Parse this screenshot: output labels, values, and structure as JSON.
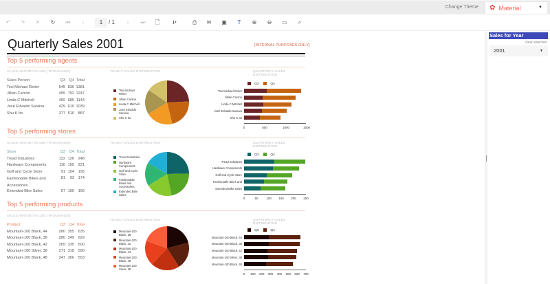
{
  "topbar": {
    "change_theme_label": "Change Theme",
    "theme_value": "Material",
    "theme_icon": "palette-icon"
  },
  "toolbar": {
    "current_page": "1",
    "total_pages": "/ 1",
    "buttons": [
      "undo",
      "redo",
      "stop",
      "refresh",
      "first-page",
      "previous-page",
      "next-page",
      "last-page",
      "page-setup",
      "export",
      "print",
      "email",
      "save",
      "parameters-filter",
      "zoom-in",
      "zoom-out",
      "fullscreen",
      "search"
    ]
  },
  "report": {
    "title": "Quarterly Sales 2001",
    "internal_note": "[INTERNAL PURPOSES ONLY]",
    "sections": [
      {
        "title": "Top 5 performing agents",
        "table_caption": "SALES AMOUNT IN USD (THOUSANDS)",
        "pie_caption": "YEARLY SALES DISTRIBUTION",
        "bar_caption": "QUARTERLY SALES DISTRIBUTION",
        "columns": [
          "Sales Person",
          "Q3",
          "Q4",
          "Total"
        ],
        "rows": [
          [
            "Tsvi Michael Reiter",
            "545",
            "836",
            "1381"
          ],
          [
            "Jillian  Carson",
            "455",
            "792",
            "1247"
          ],
          [
            "Linda C Mitchell",
            "459",
            "685",
            "1144"
          ],
          [
            "José Edvaldo Saraiva",
            "429",
            "610",
            "1039"
          ],
          [
            "Shu K Ito",
            "377",
            "510",
            "887"
          ]
        ],
        "legend": [
          "Tsvi Michael Reiter",
          "Jillian  Carson",
          "Linda C Mitchell",
          "José Edvaldo Saraiva",
          "Shu K Ito"
        ],
        "colors": [
          "#6b2527",
          "#c56410",
          "#f39a24",
          "#a89550",
          "#d3c06a"
        ],
        "q3_color": "#6b2527",
        "q4_color": "#c56410"
      },
      {
        "title": "Top 5 performing stores",
        "table_caption": "SALES AMOUNT IN USD (THOUSANDS)",
        "pie_caption": "YEARLY SALES DISTRIBUTION",
        "bar_caption": "QUARTERLY SALES DISTRIBUTION",
        "columns": [
          "Store",
          "Q3",
          "Q4",
          "Total"
        ],
        "rows": [
          [
            "Tread Industries",
            "122",
            "126",
            "248"
          ],
          [
            "Hardware Components",
            "116",
            "105",
            "221"
          ],
          [
            "Golf and Cycle Store",
            "91",
            "104",
            "195"
          ],
          [
            "Fashionable Bikes and Accessories",
            "81",
            "93",
            "174"
          ],
          [
            "Extended Bike Sales",
            "67",
            "100",
            "166"
          ]
        ],
        "legend": [
          "Tread Industries",
          "Hardware Components",
          "Golf and Cycle Store",
          "Fashionable Bikes and Accessories",
          "Extended Bike Sales"
        ],
        "colors": [
          "#0e6466",
          "#54a624",
          "#88c92e",
          "#2fb673",
          "#21afd6"
        ],
        "q3_color": "#0e6466",
        "q4_color": "#54a624"
      },
      {
        "title": "Top 5 performing products",
        "table_caption": "SALES AMOUNT IN USD (THOUSANDS)",
        "pie_caption": "YEARLY SALES DISTRIBUTION",
        "bar_caption": "QUARTERLY SALES DISTRIBUTION",
        "columns": [
          "Product",
          "Q3",
          "Q4",
          "Total"
        ],
        "rows": [
          [
            "Mountain-100 Black, 44",
            "280",
            "355",
            "635"
          ],
          [
            "Mountain-100 Black, 38",
            "280",
            "349",
            "629"
          ],
          [
            "Mountain-100 Black, 42",
            "265",
            "335",
            "600"
          ],
          [
            "Mountain-100 Silver, 38",
            "271",
            "318",
            "590"
          ],
          [
            "Mountain-100 Black, 48",
            "247",
            "306",
            "553"
          ]
        ],
        "legend": [
          "Mountain-100 Black, 38",
          "Mountain-100 Black, 42",
          "Mountain-100 Black, 44",
          "Mountain-100 Black, 48",
          "Mountain-100 Silver, 38"
        ],
        "colors": [
          "#1c0605",
          "#5b200e",
          "#c2310f",
          "#e8401d",
          "#fb5d3a"
        ],
        "q3_color": "#1c0605",
        "q4_color": "#5b200e"
      }
    ]
  },
  "side_panel": {
    "title": "Sales for Year",
    "clear_selection": "clear selection",
    "year": "2001"
  },
  "chart_data": [
    {
      "type": "pie",
      "title": "YEARLY SALES DISTRIBUTION",
      "categories": [
        "Tsvi Michael Reiter",
        "Jillian  Carson",
        "Linda C Mitchell",
        "José Edvaldo Saraiva",
        "Shu K Ito"
      ],
      "values": [
        1381,
        1247,
        1144,
        1039,
        887
      ]
    },
    {
      "type": "bar",
      "title": "QUARTERLY SALES DISTRIBUTION",
      "categories": [
        "Tsvi Michael Reiter",
        "Jillian  Carson",
        "Linda C Mitchell",
        "José Edvaldo Saraiva",
        "Shu K Ito"
      ],
      "series": [
        {
          "name": "Q3",
          "values": [
            545,
            455,
            459,
            429,
            377
          ]
        },
        {
          "name": "Q4",
          "values": [
            836,
            792,
            685,
            610,
            510
          ]
        }
      ],
      "stacked": true,
      "orientation": "horizontal",
      "xticks": [
        0,
        500,
        1000,
        1500
      ],
      "xlim": [
        0,
        1500
      ]
    },
    {
      "type": "pie",
      "title": "YEARLY SALES DISTRIBUTION",
      "categories": [
        "Tread Industries",
        "Hardware Components",
        "Golf and Cycle Store",
        "Fashionable Bikes and Accessories",
        "Extended Bike Sales"
      ],
      "values": [
        248,
        221,
        195,
        174,
        166
      ]
    },
    {
      "type": "bar",
      "title": "QUARTERLY SALES DISTRIBUTION",
      "categories": [
        "Tread Industries",
        "Hardware Components",
        "Golf and Cycle Store",
        "Fashionable Bikes and",
        "Extended Bike Sales"
      ],
      "series": [
        {
          "name": "Q3",
          "values": [
            122,
            116,
            91,
            81,
            67
          ]
        },
        {
          "name": "Q4",
          "values": [
            126,
            105,
            104,
            93,
            100
          ]
        }
      ],
      "stacked": true,
      "orientation": "horizontal",
      "xticks": [
        0,
        50,
        100,
        150,
        200,
        250
      ],
      "xlim": [
        0,
        250
      ]
    },
    {
      "type": "pie",
      "title": "YEARLY SALES DISTRIBUTION",
      "categories": [
        "Mountain-100 Black, 38",
        "Mountain-100 Black, 42",
        "Mountain-100 Black, 44",
        "Mountain-100 Black, 48",
        "Mountain-100 Silver, 38"
      ],
      "values": [
        629,
        600,
        635,
        553,
        590
      ]
    },
    {
      "type": "bar",
      "title": "QUARTERLY SALES DISTRIBUTION",
      "categories": [
        "Mountain-100 Black, 44",
        "Mountain-100 Black, 38",
        "Mountain-100 Black, 42",
        "Mountain-100 Silver, 38",
        "Mountain-100 Black, 48"
      ],
      "series": [
        {
          "name": "Q3",
          "values": [
            280,
            280,
            265,
            271,
            247
          ]
        },
        {
          "name": "Q4",
          "values": [
            355,
            349,
            335,
            318,
            306
          ]
        }
      ],
      "stacked": true,
      "orientation": "horizontal",
      "xticks": [
        0,
        100,
        200,
        300,
        400,
        500,
        600,
        700
      ],
      "xlim": [
        0,
        700
      ]
    }
  ]
}
